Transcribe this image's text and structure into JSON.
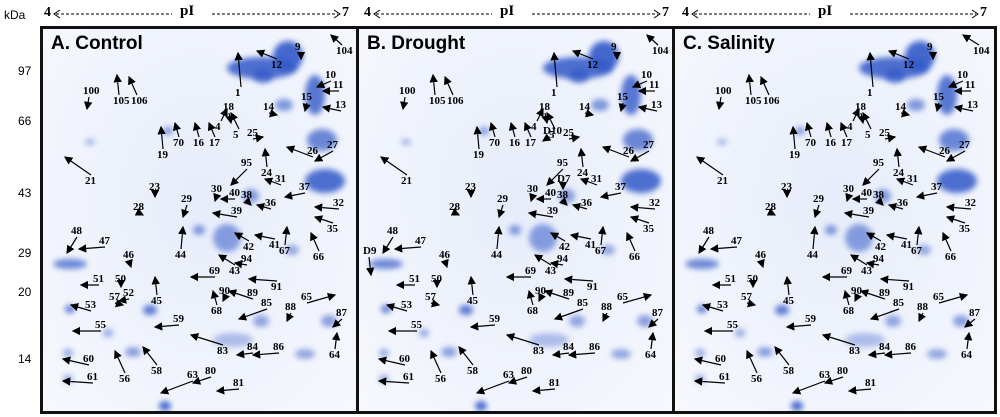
{
  "axis": {
    "kda_label": "kDa",
    "pi_left": "4",
    "pi_center": "pI",
    "pi_right": "7",
    "mw_ticks": [
      "97",
      "66",
      "43",
      "29",
      "20",
      "14"
    ]
  },
  "panels": [
    {
      "title": "A. Control",
      "spots": [
        "1",
        "4",
        "5",
        "9",
        "10",
        "11",
        "12",
        "13",
        "14",
        "15",
        "16",
        "17",
        "18",
        "19",
        "21",
        "23",
        "24",
        "25",
        "26",
        "27",
        "28",
        "29",
        "30",
        "31",
        "32",
        "35",
        "36",
        "37",
        "38",
        "39",
        "40",
        "41",
        "42",
        "43",
        "44",
        "45",
        "46",
        "47",
        "48",
        "50",
        "51",
        "52",
        "53",
        "55",
        "56",
        "57",
        "58",
        "59",
        "60",
        "61",
        "63",
        "64",
        "65",
        "66",
        "67",
        "68",
        "69",
        "70",
        "80",
        "81",
        "83",
        "84",
        "85",
        "86",
        "87",
        "88",
        "89",
        "90",
        "91",
        "94",
        "95",
        "100",
        "104",
        "105",
        "106"
      ]
    },
    {
      "title": "B. Drought",
      "spots": [
        "1",
        "4",
        "5",
        "9",
        "10",
        "11",
        "12",
        "13",
        "14",
        "15",
        "16",
        "17",
        "18",
        "19",
        "21",
        "23",
        "24",
        "25",
        "26",
        "27",
        "28",
        "29",
        "30",
        "31",
        "32",
        "35",
        "36",
        "37",
        "38",
        "39",
        "40",
        "41",
        "42",
        "43",
        "44",
        "45",
        "46",
        "47",
        "48",
        "50",
        "51",
        "53",
        "55",
        "56",
        "57",
        "58",
        "59",
        "60",
        "61",
        "63",
        "64",
        "65",
        "66",
        "67",
        "68",
        "69",
        "70",
        "80",
        "81",
        "83",
        "84",
        "85",
        "86",
        "87",
        "88",
        "89",
        "90",
        "91",
        "94",
        "95",
        "100",
        "104",
        "105",
        "106",
        "D7",
        "D9",
        "D10"
      ]
    },
    {
      "title": "C. Salinity",
      "spots": [
        "1",
        "4",
        "5",
        "9",
        "10",
        "11",
        "12",
        "13",
        "14",
        "15",
        "16",
        "17",
        "18",
        "19",
        "21",
        "23",
        "24",
        "25",
        "26",
        "27",
        "28",
        "29",
        "30",
        "31",
        "32",
        "35",
        "36",
        "37",
        "38",
        "39",
        "40",
        "41",
        "42",
        "43",
        "44",
        "45",
        "46",
        "47",
        "48",
        "50",
        "51",
        "53",
        "55",
        "56",
        "57",
        "58",
        "59",
        "60",
        "61",
        "63",
        "64",
        "65",
        "66",
        "67",
        "68",
        "69",
        "70",
        "80",
        "81",
        "83",
        "84",
        "85",
        "86",
        "87",
        "88",
        "89",
        "90",
        "91",
        "94",
        "95",
        "100",
        "104",
        "105",
        "106"
      ]
    }
  ]
}
